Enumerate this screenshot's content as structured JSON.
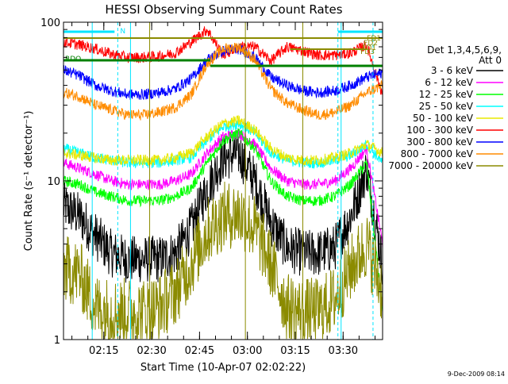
{
  "chart_data": {
    "type": "line",
    "title": "HESSI Observing Summary Count Rates",
    "xlabel": "Start Time (10-Apr-07 02:02:22)",
    "ylabel": "Count Rate (s⁻¹ detector⁻¹)",
    "x_ticks": [
      "02:15",
      "02:30",
      "02:45",
      "03:00",
      "03:15",
      "03:30"
    ],
    "x_range_minutes": [
      0,
      100
    ],
    "y_scale": "log",
    "ylim": [
      1,
      100
    ],
    "y_ticks": [
      "1",
      "10",
      "100"
    ],
    "grid": false,
    "legend": {
      "placement": "right",
      "header": [
        "Det 1,3,4,5,6,9,",
        "Att 0"
      ],
      "entries": [
        {
          "label": "3 - 6 keV",
          "color": "#000000"
        },
        {
          "label": "6 - 12 keV",
          "color": "#ff00ff"
        },
        {
          "label": "12 - 25 keV",
          "color": "#00ff00"
        },
        {
          "label": "25 - 50 keV",
          "color": "#00ffff"
        },
        {
          "label": "50 - 100 keV",
          "color": "#e8e800"
        },
        {
          "label": "100 - 300 keV",
          "color": "#ff0000"
        },
        {
          "label": "300 - 800 keV",
          "color": "#0000ff"
        },
        {
          "label": "800 - 7000 keV",
          "color": "#ff8c00"
        },
        {
          "label": "7000 - 20000 keV",
          "color": "#8b8b00"
        }
      ]
    },
    "series": [
      {
        "name": "3 - 6 keV",
        "color": "#000000",
        "t": [
          0,
          5,
          10,
          15,
          20,
          25,
          30,
          35,
          40,
          45,
          50,
          55,
          60,
          65,
          70,
          75,
          80,
          85,
          90,
          95,
          100
        ],
        "y": [
          7,
          6,
          4.5,
          3.5,
          3.2,
          3.2,
          3.2,
          3.5,
          5,
          9,
          14,
          15,
          10,
          5.5,
          3.8,
          3.5,
          3.5,
          3.8,
          6,
          12,
          3
        ]
      },
      {
        "name": "6 - 12 keV",
        "color": "#ff00ff",
        "t": [
          0,
          5,
          10,
          15,
          20,
          25,
          30,
          35,
          40,
          45,
          50,
          55,
          60,
          65,
          70,
          75,
          80,
          85,
          90,
          95,
          100
        ],
        "y": [
          13,
          12,
          11,
          10,
          9.5,
          9.5,
          9.5,
          10,
          11,
          15,
          19,
          20,
          17,
          12,
          10,
          9.5,
          9.5,
          10,
          12,
          16,
          4
        ]
      },
      {
        "name": "12 - 25 keV",
        "color": "#00ff00",
        "t": [
          0,
          5,
          10,
          15,
          20,
          25,
          30,
          35,
          40,
          45,
          50,
          55,
          60,
          65,
          70,
          75,
          80,
          85,
          90,
          95,
          100
        ],
        "y": [
          10,
          9.5,
          8.5,
          8,
          7.5,
          7.5,
          7.5,
          8,
          9,
          13,
          18,
          20,
          16,
          10,
          8,
          7.5,
          7.5,
          8,
          9.5,
          13,
          1.5
        ]
      },
      {
        "name": "25 - 50 keV",
        "color": "#00ffff",
        "t": [
          0,
          5,
          10,
          15,
          20,
          25,
          30,
          35,
          40,
          45,
          50,
          55,
          60,
          65,
          70,
          75,
          80,
          85,
          90,
          95,
          100
        ],
        "y": [
          16,
          15,
          14,
          13.5,
          13,
          13,
          13,
          13.5,
          14,
          18,
          22,
          23,
          20,
          15,
          13.5,
          13,
          13,
          13.5,
          14.5,
          17,
          13
        ]
      },
      {
        "name": "50 - 100 keV",
        "color": "#e8e800",
        "t": [
          0,
          5,
          10,
          15,
          20,
          25,
          30,
          35,
          40,
          45,
          50,
          55,
          60,
          65,
          70,
          75,
          80,
          85,
          90,
          95,
          100
        ],
        "y": [
          15,
          14.5,
          14,
          13.5,
          13.5,
          13.5,
          13.5,
          14,
          15,
          19,
          23,
          24,
          21,
          16,
          14,
          13.5,
          13.5,
          14,
          15,
          17,
          15
        ]
      },
      {
        "name": "100 - 300 keV",
        "color": "#ff0000",
        "t": [
          0,
          5,
          10,
          15,
          20,
          25,
          30,
          35,
          40,
          45,
          50,
          55,
          60,
          65,
          70,
          75,
          80,
          85,
          90,
          95,
          100
        ],
        "y": [
          75,
          72,
          68,
          63,
          60,
          60,
          61,
          64,
          75,
          90,
          62,
          70,
          70,
          57,
          70,
          66,
          62,
          62,
          64,
          72,
          35
        ]
      },
      {
        "name": "300 - 800 keV",
        "color": "#0000ff",
        "t": [
          0,
          5,
          10,
          15,
          20,
          25,
          30,
          35,
          40,
          45,
          50,
          55,
          60,
          65,
          70,
          75,
          80,
          85,
          90,
          95,
          100
        ],
        "y": [
          50,
          46,
          40,
          37,
          35,
          35,
          36,
          38,
          44,
          58,
          66,
          68,
          60,
          45,
          40,
          37,
          36,
          37,
          40,
          45,
          48
        ]
      },
      {
        "name": "800 - 7000 keV",
        "color": "#ff8c00",
        "t": [
          0,
          5,
          10,
          15,
          20,
          25,
          30,
          35,
          40,
          45,
          50,
          55,
          60,
          65,
          70,
          75,
          80,
          85,
          90,
          95,
          100
        ],
        "y": [
          36,
          34,
          30,
          28,
          26,
          26,
          27,
          29,
          35,
          55,
          68,
          70,
          58,
          38,
          31,
          28,
          26,
          27,
          30,
          36,
          40
        ]
      },
      {
        "name": "7000 - 20000 keV",
        "color": "#8b8b00",
        "t": [
          0,
          5,
          10,
          15,
          20,
          25,
          30,
          35,
          40,
          45,
          50,
          55,
          60,
          65,
          70,
          75,
          80,
          85,
          90,
          95,
          100
        ],
        "y": [
          2.8,
          2.6,
          1.6,
          1.5,
          1.5,
          1.5,
          1.6,
          2,
          3,
          4.8,
          6,
          6.2,
          5,
          3,
          1.6,
          1.5,
          1.5,
          1.8,
          2.8,
          4,
          2
        ]
      }
    ],
    "annotations": [
      {
        "text": "N",
        "color": "#00e5ff"
      },
      {
        "text": "RDO",
        "color": "#008000"
      },
      {
        "text": "FD1",
        "color": "#8b8b00"
      },
      {
        "text": "FD1",
        "color": "#8b8b00"
      },
      {
        "text": "FD2",
        "color": "#8b8b00"
      },
      {
        "text": "FD3",
        "color": "#8b8b00"
      }
    ],
    "footer_timestamp": "9-Dec-2009 08:14"
  }
}
